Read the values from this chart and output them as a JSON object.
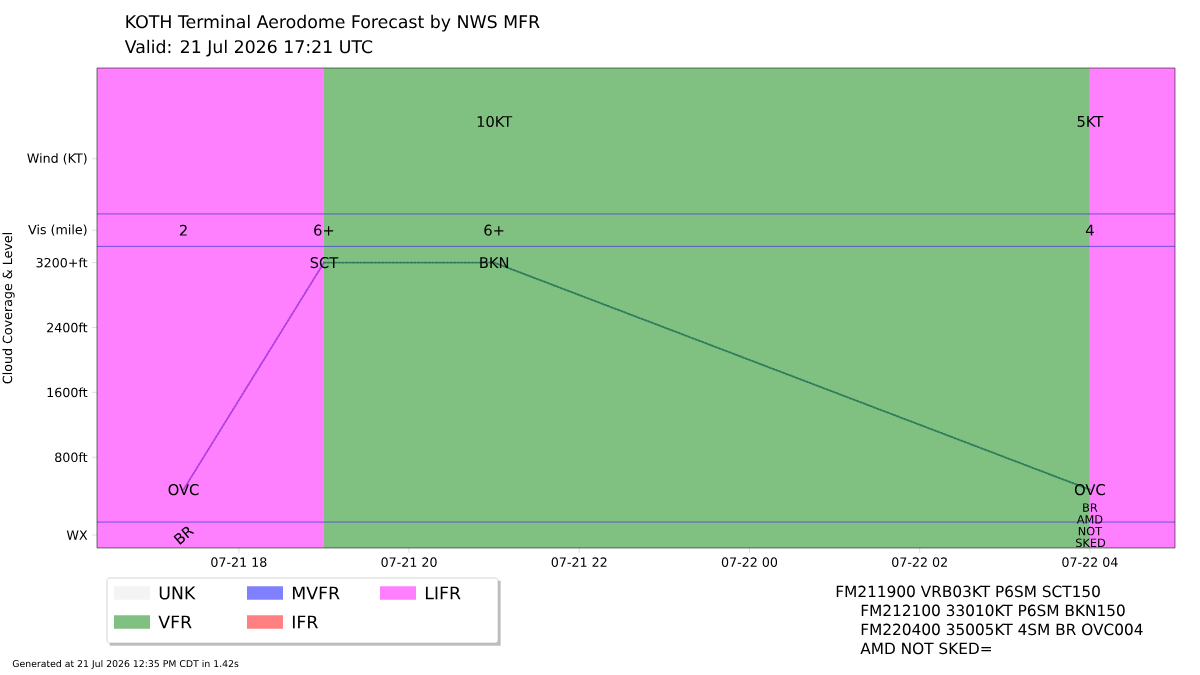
{
  "chart_data": {
    "type": "line",
    "title": "KOTH Terminal Aerodome Forecast by NWS MFR",
    "subtitle": "Valid: 21 Jul 2026 17:21 UTC",
    "ylabel": "Cloud Coverage & Level",
    "xlim": [
      "2026-07-21T16:20",
      "2026-07-22T05:00"
    ],
    "xticks": [
      {
        "value": "2026-07-21T18:00",
        "label": "07-21 18"
      },
      {
        "value": "2026-07-21T20:00",
        "label": "07-21 20"
      },
      {
        "value": "2026-07-21T22:00",
        "label": "07-21 22"
      },
      {
        "value": "2026-07-22T00:00",
        "label": "07-22 00"
      },
      {
        "value": "2026-07-22T02:00",
        "label": "07-22 02"
      },
      {
        "value": "2026-07-22T04:00",
        "label": "07-22 04"
      }
    ],
    "ylim": [
      -320,
      5600
    ],
    "yticks": [
      {
        "value": -160,
        "label": "WX"
      },
      {
        "value": 800,
        "label": "800ft"
      },
      {
        "value": 1600,
        "label": "1600ft"
      },
      {
        "value": 2400,
        "label": "2400ft"
      },
      {
        "value": 3200,
        "label": "3200+ft"
      },
      {
        "value": 3600,
        "label": "Vis (mile)"
      },
      {
        "value": 4480,
        "label": "Wind (KT)"
      }
    ],
    "line_style": "dotted",
    "marker": "none",
    "legend": "bottom left",
    "series": [
      {
        "x": [
          "2026-07-21T17:21",
          "2026-07-21T19:00"
        ],
        "values": [
          400,
          3200
        ],
        "color": "#b040e0"
      },
      {
        "x": [
          "2026-07-21T19:00",
          "2026-07-21T21:00",
          "2026-07-22T04:00"
        ],
        "values": [
          3200,
          3200,
          400
        ],
        "color": "#2e7d5a"
      },
      {
        "name": "UNK",
        "color": "#f4f4f4"
      },
      {
        "name": "VFR",
        "color": "#80c080"
      },
      {
        "name": "MVFR",
        "color": "#8080ff"
      },
      {
        "name": "IFR",
        "color": "#ff8080"
      },
      {
        "name": "LIFR",
        "color": "#ff80ff"
      }
    ],
    "bands": [
      {
        "axis": "x",
        "from": "2026-07-21T16:20",
        "to": "2026-07-21T19:00",
        "color": "#ff80ff"
      },
      {
        "axis": "x",
        "from": "2026-07-21T19:00",
        "to": "2026-07-22T04:00",
        "color": "#80c080"
      },
      {
        "axis": "x",
        "from": "2026-07-22T04:00",
        "to": "2026-07-22T05:00",
        "color": "#ff80ff"
      }
    ],
    "ref_lines": [
      {
        "axis": "y",
        "value": 0,
        "color": "#5040d8"
      },
      {
        "axis": "y",
        "value": 3400,
        "color": "#5040d8"
      },
      {
        "axis": "y",
        "value": 3800,
        "color": "#5040d8"
      }
    ],
    "annotations": [
      {
        "text": "OVC",
        "x": "2026-07-21T17:21",
        "y": 400
      },
      {
        "text": "SCT",
        "x": "2026-07-21T19:00",
        "y": 3200
      },
      {
        "text": "BKN",
        "x": "2026-07-21T21:00",
        "y": 3200
      },
      {
        "text": "OVC",
        "x": "2026-07-22T04:00",
        "y": 400
      },
      "2",
      "6+",
      "6+",
      "4",
      "10KT",
      "5KT",
      "BR",
      "BR AMD NOT SKED",
      "FM211900 VRB03KT P6SM SCT150",
      "FM212100 33010KT P6SM BKN150",
      "FM220400 35005KT 4SM BR OVC004",
      "AMD NOT SKED=",
      "Generated at 21 Jul 2026 12:35 PM CDT in 1.42s"
    ]
  }
}
